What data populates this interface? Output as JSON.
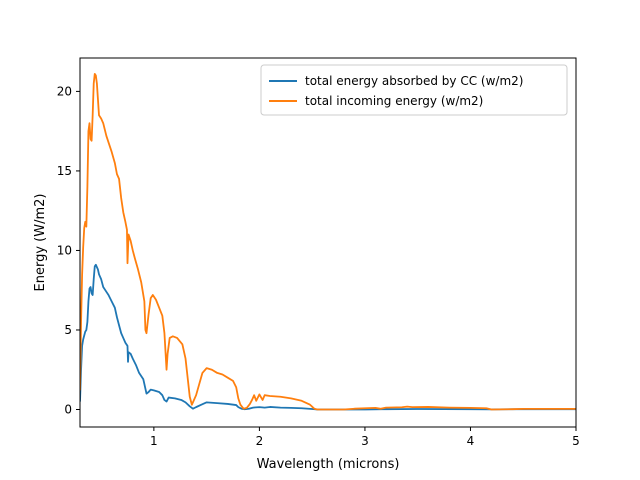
{
  "chart_data": {
    "type": "line",
    "title": "",
    "xlabel": "Wavelength (microns)",
    "ylabel": "Energy (W/m2)",
    "xlim": [
      0.3,
      5.0
    ],
    "ylim": [
      -1.1,
      22.1
    ],
    "xticks": [
      1,
      2,
      3,
      4,
      5
    ],
    "yticks": [
      0,
      5,
      10,
      15,
      20
    ],
    "grid": false,
    "legend_position": "top-right",
    "series": [
      {
        "name": "total energy absorbed by CC (w/m2)",
        "color": "#1f77b4",
        "points": [
          [
            0.3,
            0.5
          ],
          [
            0.31,
            2.5
          ],
          [
            0.32,
            4.0
          ],
          [
            0.33,
            4.4
          ],
          [
            0.35,
            4.9
          ],
          [
            0.36,
            5.0
          ],
          [
            0.37,
            5.5
          ],
          [
            0.38,
            6.8
          ],
          [
            0.39,
            7.6
          ],
          [
            0.4,
            7.7
          ],
          [
            0.41,
            7.3
          ],
          [
            0.42,
            7.2
          ],
          [
            0.43,
            8.2
          ],
          [
            0.44,
            9.0
          ],
          [
            0.45,
            9.1
          ],
          [
            0.47,
            8.8
          ],
          [
            0.48,
            8.5
          ],
          [
            0.5,
            8.2
          ],
          [
            0.52,
            7.7
          ],
          [
            0.55,
            7.4
          ],
          [
            0.57,
            7.2
          ],
          [
            0.6,
            6.8
          ],
          [
            0.63,
            6.4
          ],
          [
            0.65,
            5.8
          ],
          [
            0.67,
            5.3
          ],
          [
            0.69,
            4.8
          ],
          [
            0.71,
            4.5
          ],
          [
            0.73,
            4.2
          ],
          [
            0.75,
            4.0
          ],
          [
            0.755,
            3.0
          ],
          [
            0.76,
            3.6
          ],
          [
            0.78,
            3.5
          ],
          [
            0.8,
            3.2
          ],
          [
            0.83,
            2.8
          ],
          [
            0.86,
            2.3
          ],
          [
            0.9,
            1.9
          ],
          [
            0.93,
            1.0
          ],
          [
            0.95,
            1.1
          ],
          [
            0.97,
            1.25
          ],
          [
            1.0,
            1.2
          ],
          [
            1.05,
            1.1
          ],
          [
            1.08,
            0.9
          ],
          [
            1.1,
            0.6
          ],
          [
            1.12,
            0.5
          ],
          [
            1.14,
            0.75
          ],
          [
            1.2,
            0.7
          ],
          [
            1.26,
            0.6
          ],
          [
            1.3,
            0.45
          ],
          [
            1.34,
            0.2
          ],
          [
            1.37,
            0.05
          ],
          [
            1.4,
            0.15
          ],
          [
            1.45,
            0.3
          ],
          [
            1.5,
            0.45
          ],
          [
            1.6,
            0.4
          ],
          [
            1.7,
            0.35
          ],
          [
            1.78,
            0.28
          ],
          [
            1.8,
            0.15
          ],
          [
            1.83,
            0.05
          ],
          [
            1.86,
            0.02
          ],
          [
            1.9,
            0.05
          ],
          [
            1.94,
            0.12
          ],
          [
            2.0,
            0.15
          ],
          [
            2.05,
            0.12
          ],
          [
            2.1,
            0.16
          ],
          [
            2.2,
            0.12
          ],
          [
            2.3,
            0.1
          ],
          [
            2.4,
            0.08
          ],
          [
            2.5,
            0.03
          ],
          [
            2.55,
            0.0
          ],
          [
            3.0,
            0.0
          ],
          [
            3.2,
            0.02
          ],
          [
            3.5,
            0.03
          ],
          [
            4.0,
            0.02
          ],
          [
            4.2,
            0.01
          ],
          [
            4.5,
            0.02
          ],
          [
            5.0,
            0.02
          ]
        ]
      },
      {
        "name": "total incoming energy (w/m2)",
        "color": "#ff7f0e",
        "points": [
          [
            0.3,
            1.2
          ],
          [
            0.31,
            5.5
          ],
          [
            0.32,
            8.5
          ],
          [
            0.33,
            10.2
          ],
          [
            0.34,
            11.4
          ],
          [
            0.35,
            11.8
          ],
          [
            0.36,
            11.5
          ],
          [
            0.37,
            14.0
          ],
          [
            0.38,
            17.5
          ],
          [
            0.39,
            18.0
          ],
          [
            0.4,
            17.0
          ],
          [
            0.41,
            16.9
          ],
          [
            0.42,
            18.5
          ],
          [
            0.43,
            20.5
          ],
          [
            0.44,
            21.1
          ],
          [
            0.45,
            21.0
          ],
          [
            0.46,
            20.5
          ],
          [
            0.47,
            19.5
          ],
          [
            0.48,
            18.5
          ],
          [
            0.5,
            18.3
          ],
          [
            0.52,
            18.0
          ],
          [
            0.55,
            17.2
          ],
          [
            0.57,
            16.8
          ],
          [
            0.6,
            16.2
          ],
          [
            0.63,
            15.5
          ],
          [
            0.65,
            14.8
          ],
          [
            0.67,
            14.5
          ],
          [
            0.69,
            13.3
          ],
          [
            0.71,
            12.4
          ],
          [
            0.73,
            11.8
          ],
          [
            0.745,
            11.3
          ],
          [
            0.75,
            9.2
          ],
          [
            0.76,
            11.0
          ],
          [
            0.78,
            10.6
          ],
          [
            0.8,
            10.0
          ],
          [
            0.82,
            9.5
          ],
          [
            0.85,
            8.8
          ],
          [
            0.88,
            8.0
          ],
          [
            0.91,
            6.8
          ],
          [
            0.92,
            5.0
          ],
          [
            0.93,
            4.8
          ],
          [
            0.95,
            6.0
          ],
          [
            0.97,
            7.0
          ],
          [
            0.99,
            7.2
          ],
          [
            1.02,
            6.9
          ],
          [
            1.05,
            6.4
          ],
          [
            1.08,
            5.9
          ],
          [
            1.1,
            4.8
          ],
          [
            1.12,
            2.5
          ],
          [
            1.13,
            3.5
          ],
          [
            1.15,
            4.5
          ],
          [
            1.18,
            4.6
          ],
          [
            1.22,
            4.5
          ],
          [
            1.27,
            4.1
          ],
          [
            1.3,
            3.2
          ],
          [
            1.32,
            2.0
          ],
          [
            1.34,
            0.8
          ],
          [
            1.36,
            0.3
          ],
          [
            1.38,
            0.6
          ],
          [
            1.4,
            0.9
          ],
          [
            1.43,
            1.6
          ],
          [
            1.46,
            2.3
          ],
          [
            1.5,
            2.6
          ],
          [
            1.55,
            2.5
          ],
          [
            1.6,
            2.3
          ],
          [
            1.65,
            2.2
          ],
          [
            1.7,
            2.0
          ],
          [
            1.75,
            1.8
          ],
          [
            1.78,
            1.4
          ],
          [
            1.8,
            0.7
          ],
          [
            1.82,
            0.3
          ],
          [
            1.85,
            0.05
          ],
          [
            1.88,
            0.1
          ],
          [
            1.91,
            0.35
          ],
          [
            1.93,
            0.6
          ],
          [
            1.95,
            0.9
          ],
          [
            1.97,
            0.55
          ],
          [
            2.0,
            0.95
          ],
          [
            2.03,
            0.6
          ],
          [
            2.05,
            0.9
          ],
          [
            2.1,
            0.85
          ],
          [
            2.2,
            0.8
          ],
          [
            2.3,
            0.7
          ],
          [
            2.4,
            0.55
          ],
          [
            2.48,
            0.3
          ],
          [
            2.52,
            0.05
          ],
          [
            2.55,
            0.0
          ],
          [
            2.8,
            0.0
          ],
          [
            2.9,
            0.05
          ],
          [
            3.0,
            0.08
          ],
          [
            3.1,
            0.1
          ],
          [
            3.15,
            0.05
          ],
          [
            3.2,
            0.12
          ],
          [
            3.35,
            0.14
          ],
          [
            3.4,
            0.18
          ],
          [
            3.45,
            0.15
          ],
          [
            3.6,
            0.16
          ],
          [
            3.8,
            0.12
          ],
          [
            4.0,
            0.1
          ],
          [
            4.15,
            0.08
          ],
          [
            4.2,
            0.0
          ],
          [
            4.4,
            0.02
          ],
          [
            4.5,
            0.04
          ],
          [
            5.0,
            0.04
          ]
        ]
      }
    ]
  }
}
